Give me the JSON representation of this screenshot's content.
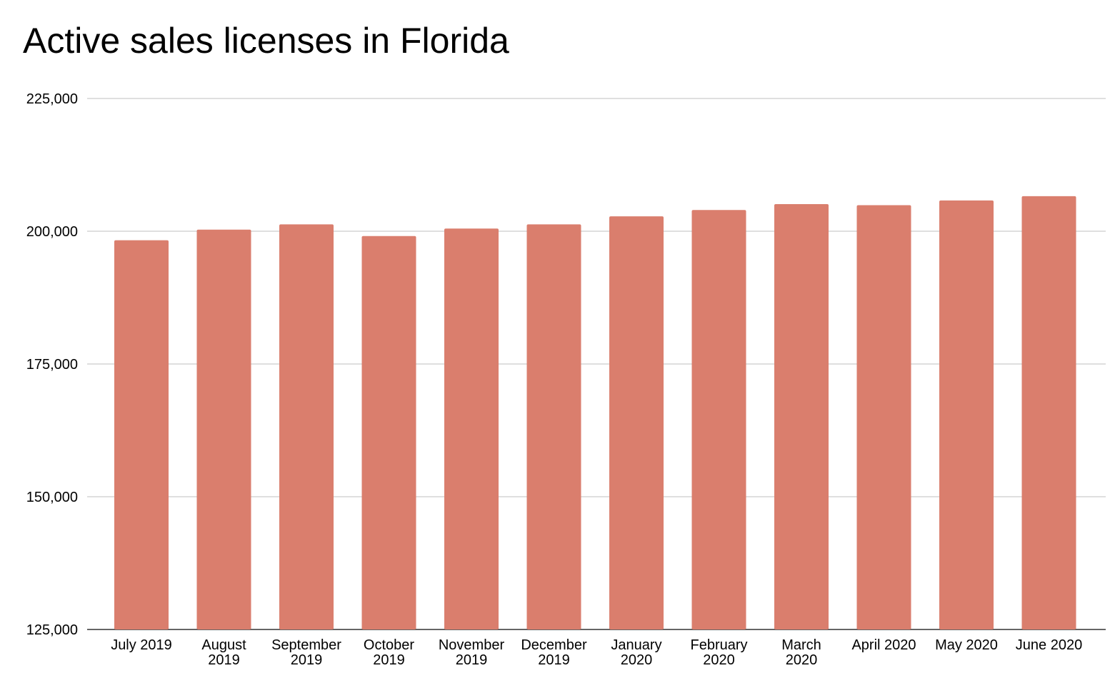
{
  "chart_data": {
    "type": "bar",
    "title": "Active sales licenses in Florida",
    "xlabel": "",
    "ylabel": "",
    "ylim": [
      125000,
      225000
    ],
    "yticks": [
      {
        "value": 225000,
        "label": "225,000"
      },
      {
        "value": 200000,
        "label": "200,000"
      },
      {
        "value": 175000,
        "label": "175,000"
      },
      {
        "value": 150000,
        "label": "150,000"
      },
      {
        "value": 125000,
        "label": "125,000"
      }
    ],
    "grid": true,
    "legend": "none",
    "bar_color": "#DA7E6D",
    "grid_color": "#CCCCCC",
    "categories": [
      [
        "July 2019"
      ],
      [
        "August",
        "2019"
      ],
      [
        "September",
        "2019"
      ],
      [
        "October",
        "2019"
      ],
      [
        "November",
        "2019"
      ],
      [
        "December",
        "2019"
      ],
      [
        "January",
        "2020"
      ],
      [
        "February",
        "2020"
      ],
      [
        "March",
        "2020"
      ],
      [
        "April 2020"
      ],
      [
        "May 2020"
      ],
      [
        "June 2020"
      ]
    ],
    "values": [
      198300,
      200300,
      201300,
      199100,
      200500,
      201300,
      202800,
      204000,
      205100,
      204900,
      205800,
      206600
    ]
  }
}
